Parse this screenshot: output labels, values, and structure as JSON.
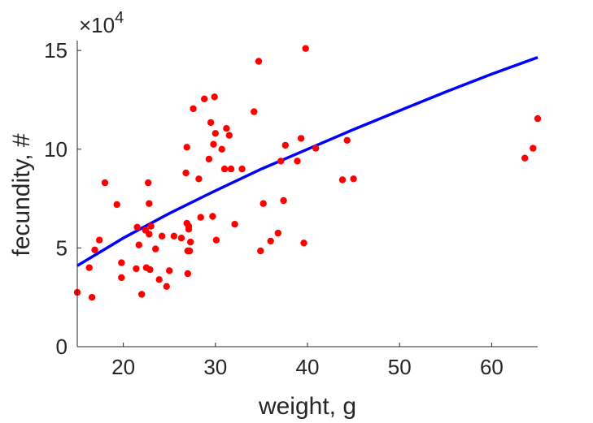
{
  "chart_data": {
    "type": "scatter",
    "xlabel": "weight, g",
    "ylabel": "fecundity, #",
    "exponent_label": "×10",
    "exponent_power": "4",
    "xlim": [
      15,
      65
    ],
    "ylim": [
      0,
      155000
    ],
    "xticks": [
      20,
      30,
      40,
      50,
      60
    ],
    "yticks": [
      0,
      50000,
      100000,
      150000
    ],
    "xtick_labels": [
      "20",
      "30",
      "40",
      "50",
      "60"
    ],
    "ytick_labels": [
      "0",
      "5",
      "10",
      "15"
    ],
    "grid": false,
    "colors": {
      "points": "#ff0000",
      "fit": "#0000ff",
      "axis": "#262626"
    },
    "series": [
      {
        "kind": "points",
        "x": [
          15.0,
          16.3,
          16.6,
          16.9,
          17.4,
          18.0,
          19.3,
          19.8,
          19.8,
          21.4,
          21.5,
          21.7,
          22.0,
          22.4,
          22.5,
          22.7,
          22.8,
          22.8,
          22.9,
          23.0,
          23.5,
          23.9,
          24.2,
          24.7,
          25.0,
          25.5,
          26.3,
          26.8,
          26.9,
          26.9,
          27.0,
          27.0,
          27.1,
          27.1,
          27.2,
          27.3,
          27.6,
          28.2,
          28.4,
          28.8,
          29.3,
          29.5,
          29.7,
          29.8,
          29.9,
          30.0,
          30.1,
          30.7,
          31.0,
          31.2,
          31.5,
          31.7,
          32.1,
          32.9,
          34.2,
          34.7,
          34.9,
          35.2,
          36.0,
          36.8,
          37.1,
          37.4,
          37.6,
          38.9,
          39.3,
          39.6,
          39.8,
          40.9,
          43.8,
          44.3,
          45.0,
          63.6,
          64.5,
          65.0
        ],
        "y": [
          27500,
          40000,
          25000,
          49000,
          54000,
          83000,
          72000,
          35000,
          42500,
          39500,
          60500,
          51500,
          26500,
          59000,
          40000,
          83000,
          72500,
          57000,
          39000,
          61000,
          49500,
          34000,
          56000,
          30500,
          38500,
          56000,
          55000,
          88000,
          101000,
          62500,
          48500,
          37000,
          61000,
          59500,
          48500,
          53000,
          120500,
          85000,
          65500,
          125500,
          95000,
          113500,
          66000,
          102500,
          126500,
          108000,
          54000,
          100000,
          90000,
          110500,
          107000,
          90000,
          62000,
          90000,
          119000,
          144500,
          48500,
          72500,
          53500,
          57500,
          94000,
          74000,
          102000,
          94000,
          105500,
          52500,
          151000,
          100500,
          84500,
          104500,
          85000,
          95500,
          100500,
          115500
        ]
      },
      {
        "kind": "fit",
        "x": [
          15,
          20,
          25,
          30,
          35,
          40,
          45,
          50,
          55,
          60,
          65
        ],
        "y": [
          41000,
          55000,
          67500,
          79000,
          90000,
          100000,
          110000,
          119500,
          129000,
          138000,
          146500
        ]
      }
    ]
  }
}
